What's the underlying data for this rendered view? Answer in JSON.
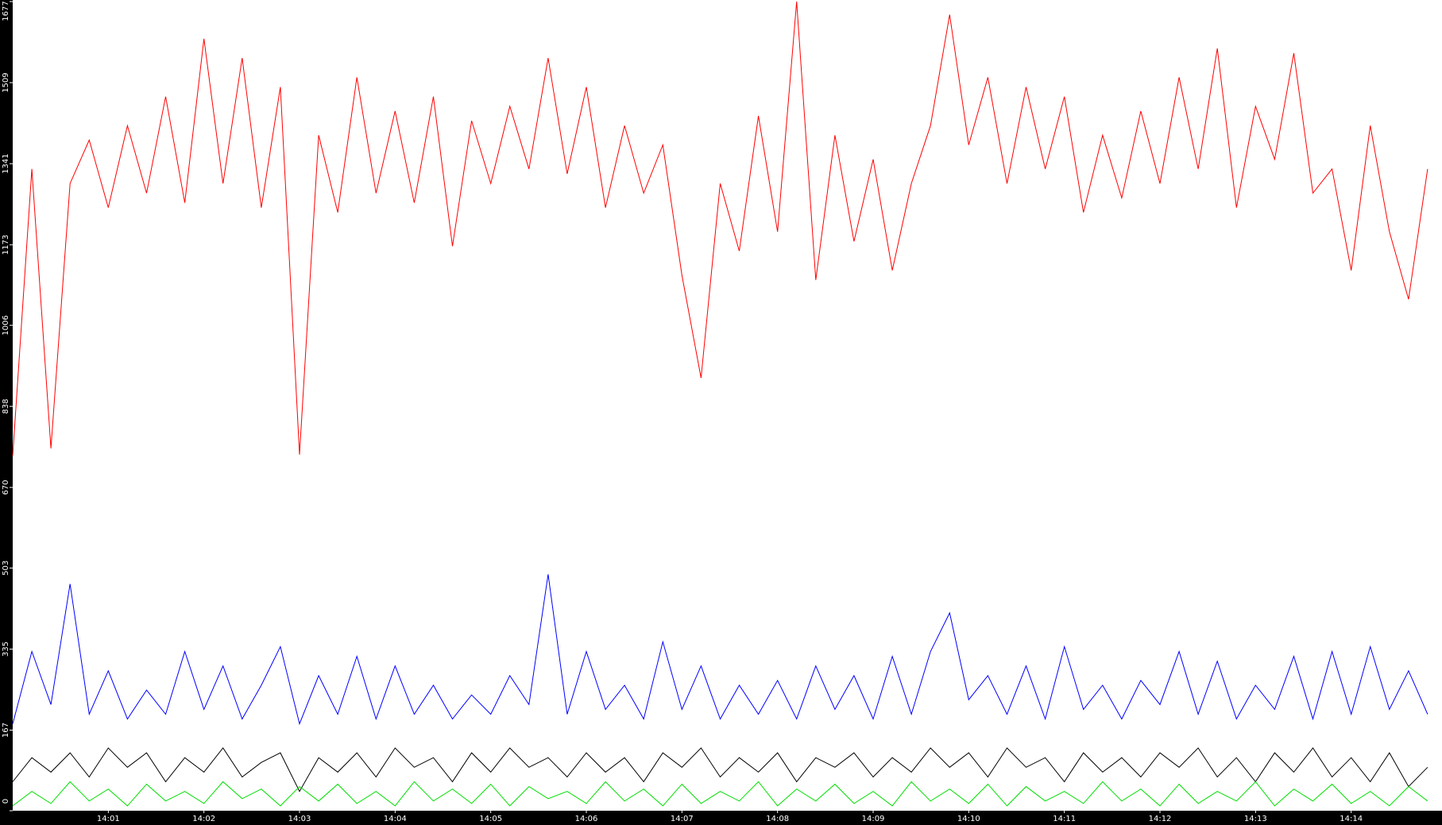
{
  "chart_data": {
    "type": "line",
    "x": [
      0,
      0.2,
      0.4,
      0.6,
      0.8,
      1,
      1.2,
      1.4,
      1.6,
      1.8,
      2,
      2.2,
      2.4,
      2.6,
      2.8,
      3,
      3.2,
      3.4,
      3.6,
      3.8,
      4,
      4.2,
      4.4,
      4.6,
      4.8,
      5,
      5.2,
      5.4,
      5.6,
      5.8,
      6,
      6.2,
      6.4,
      6.6,
      6.8,
      7,
      7.2,
      7.4,
      7.6,
      7.8,
      8,
      8.2,
      8.4,
      8.6,
      8.8,
      9,
      9.2,
      9.4,
      9.6,
      9.8,
      10,
      10.2,
      10.4,
      10.6,
      10.8,
      11,
      11.2,
      11.4,
      11.6,
      11.8,
      12,
      12.2,
      12.4,
      12.6,
      12.8,
      13,
      13.2,
      13.4,
      13.6,
      13.8,
      14,
      14.2,
      14.4,
      14.6,
      14.8
    ],
    "series": [
      {
        "color": "#ff0000",
        "values": [
          736,
          1330,
          751,
          1300,
          1390,
          1250,
          1420,
          1280,
          1480,
          1260,
          1600,
          1300,
          1560,
          1250,
          1500,
          738,
          1400,
          1240,
          1520,
          1280,
          1450,
          1260,
          1480,
          1170,
          1430,
          1300,
          1460,
          1330,
          1560,
          1320,
          1500,
          1250,
          1420,
          1280,
          1380,
          1110,
          897,
          1300,
          1160,
          1440,
          1200,
          1677,
          1100,
          1400,
          1180,
          1350,
          1120,
          1300,
          1420,
          1650,
          1380,
          1520,
          1300,
          1500,
          1330,
          1480,
          1240,
          1400,
          1270,
          1450,
          1300,
          1520,
          1330,
          1580,
          1250,
          1460,
          1350,
          1570,
          1280,
          1330,
          1120,
          1420,
          1200,
          1060,
          1330
        ]
      },
      {
        "color": "#0000ff",
        "values": [
          180,
          330,
          220,
          470,
          200,
          290,
          190,
          250,
          200,
          330,
          210,
          300,
          190,
          260,
          340,
          180,
          280,
          200,
          320,
          190,
          300,
          200,
          260,
          190,
          240,
          200,
          280,
          220,
          490,
          200,
          330,
          210,
          260,
          190,
          350,
          210,
          300,
          190,
          260,
          200,
          270,
          190,
          300,
          210,
          280,
          190,
          320,
          200,
          330,
          410,
          230,
          280,
          200,
          300,
          190,
          340,
          210,
          260,
          190,
          270,
          220,
          330,
          200,
          310,
          190,
          260,
          210,
          320,
          190,
          330,
          200,
          340,
          210,
          290,
          200
        ]
      },
      {
        "color": "#000000",
        "values": [
          60,
          110,
          80,
          120,
          70,
          130,
          90,
          120,
          60,
          110,
          80,
          130,
          70,
          100,
          120,
          40,
          110,
          80,
          120,
          70,
          130,
          90,
          110,
          60,
          120,
          80,
          130,
          90,
          110,
          70,
          120,
          80,
          110,
          60,
          120,
          90,
          130,
          70,
          110,
          80,
          120,
          60,
          110,
          90,
          120,
          70,
          110,
          80,
          130,
          90,
          120,
          70,
          130,
          90,
          110,
          60,
          120,
          80,
          110,
          70,
          120,
          90,
          130,
          70,
          110,
          60,
          120,
          80,
          130,
          70,
          110,
          60,
          120,
          50,
          90
        ]
      },
      {
        "color": "#00dd00",
        "values": [
          10,
          40,
          15,
          60,
          20,
          45,
          10,
          55,
          20,
          40,
          15,
          60,
          25,
          45,
          10,
          50,
          20,
          55,
          15,
          40,
          10,
          60,
          20,
          45,
          15,
          55,
          10,
          50,
          25,
          40,
          15,
          60,
          20,
          45,
          10,
          55,
          15,
          40,
          20,
          60,
          10,
          45,
          20,
          55,
          15,
          40,
          10,
          60,
          20,
          45,
          15,
          55,
          10,
          50,
          20,
          40,
          15,
          60,
          20,
          45,
          10,
          55,
          15,
          40,
          20,
          60,
          10,
          45,
          20,
          55,
          15,
          40,
          10,
          50,
          20
        ]
      }
    ],
    "xlim": [
      0,
      14.95
    ],
    "ylim": [
      0,
      1677
    ],
    "yticks": [
      0,
      167,
      335,
      503,
      670,
      838,
      1006,
      1173,
      1341,
      1509,
      1677
    ],
    "xticks": [
      {
        "value": 1,
        "label": "14:01"
      },
      {
        "value": 2,
        "label": "14:02"
      },
      {
        "value": 3,
        "label": "14:03"
      },
      {
        "value": 4,
        "label": "14:04"
      },
      {
        "value": 5,
        "label": "14:05"
      },
      {
        "value": 6,
        "label": "14:06"
      },
      {
        "value": 7,
        "label": "14:07"
      },
      {
        "value": 8,
        "label": "14:08"
      },
      {
        "value": 9,
        "label": "14:09"
      },
      {
        "value": 10,
        "label": "14:10"
      },
      {
        "value": 11,
        "label": "14:11"
      },
      {
        "value": 12,
        "label": "14:12"
      },
      {
        "value": 13,
        "label": "14:13"
      },
      {
        "value": 14,
        "label": "14:14"
      }
    ]
  }
}
